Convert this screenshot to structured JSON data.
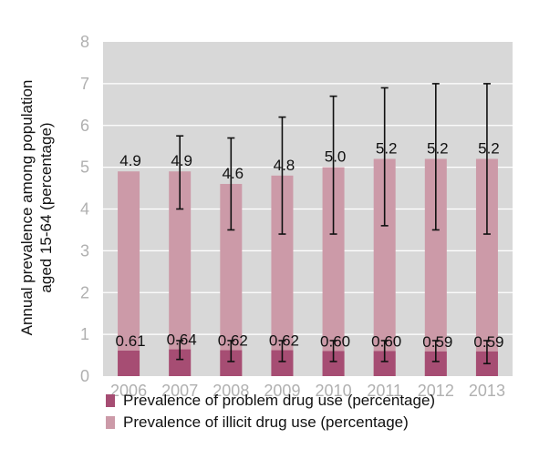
{
  "chart_data": {
    "type": "bar",
    "stacked": false,
    "overlaid": true,
    "categories": [
      "2006",
      "2007",
      "2008",
      "2009",
      "2010",
      "2011",
      "2012",
      "2013"
    ],
    "series": [
      {
        "name": "Prevalence of problem drug use (percentage)",
        "color": "#a64d73",
        "values": [
          0.61,
          0.64,
          0.62,
          0.62,
          0.6,
          0.6,
          0.59,
          0.59
        ],
        "labels": [
          "0.61",
          "0.64",
          "0.62",
          "0.62",
          "0.60",
          "0.60",
          "0.59",
          "0.59"
        ],
        "error_low": [
          null,
          0.4,
          0.35,
          0.35,
          0.35,
          0.35,
          0.35,
          0.3
        ],
        "error_high": [
          null,
          0.85,
          0.85,
          0.85,
          0.85,
          0.85,
          0.85,
          0.85
        ]
      },
      {
        "name": "Prevalence of illicit drug use (percentage)",
        "color": "#cc9aa8",
        "values": [
          4.9,
          4.9,
          4.6,
          4.8,
          5.0,
          5.2,
          5.2,
          5.2
        ],
        "labels": [
          "4.9",
          "4.9",
          "4.6",
          "4.8",
          "5.0",
          "5.2",
          "5.2",
          "5.2"
        ],
        "error_low": [
          null,
          4.0,
          3.5,
          3.4,
          3.4,
          3.6,
          3.5,
          3.4
        ],
        "error_high": [
          null,
          5.75,
          5.7,
          6.2,
          6.7,
          6.9,
          7.0,
          7.0
        ]
      }
    ],
    "yticks": [
      "0",
      "1",
      "2",
      "3",
      "4",
      "5",
      "6",
      "7",
      "8"
    ],
    "ylim": [
      0,
      8
    ],
    "ylabel_line1": "Annual prevalence among population",
    "ylabel_line2": "aged 15-64 (percentage)",
    "xlabel": "",
    "title": "",
    "grid": "horizontal",
    "plot_background": "#d8d8d8",
    "grid_color": "#ffffff",
    "legend_position": "bottom"
  }
}
